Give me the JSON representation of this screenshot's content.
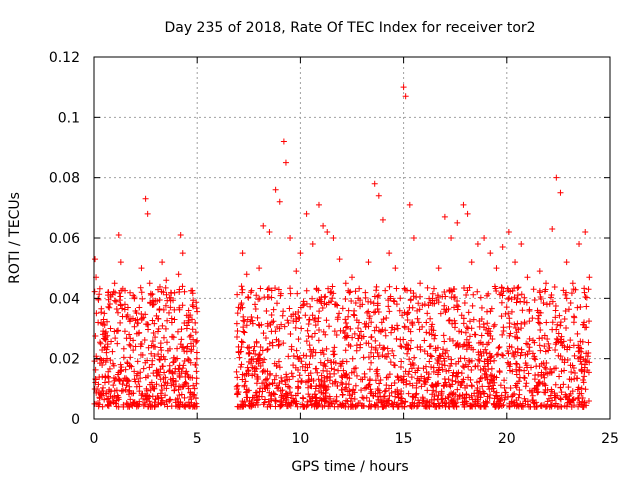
{
  "chart_data": {
    "type": "scatter",
    "title": "Day 235 of 2018, Rate Of TEC Index for receiver tor2",
    "xlabel": "GPS time / hours",
    "ylabel": "ROTI / TECUs",
    "xlim": [
      0,
      25
    ],
    "ylim": [
      0,
      0.12
    ],
    "x_ticks": [
      "0",
      "5",
      "10",
      "15",
      "20",
      "25"
    ],
    "y_ticks": [
      "0",
      "0.02",
      "0.04",
      "0.06",
      "0.08",
      "0.1",
      "0.12"
    ],
    "grid": true,
    "marker": "+",
    "color": "#ff0000",
    "data_gap_hours": [
      5.0,
      6.9
    ],
    "series": [
      {
        "x": [
          0.05,
          0.1,
          0.2,
          0.3,
          0.4,
          0.5,
          0.6,
          0.8,
          1.0,
          1.2,
          1.3,
          1.5,
          1.7,
          1.9,
          2.1,
          2.3,
          2.5,
          2.6,
          2.7,
          2.9,
          3.1,
          3.3,
          3.5,
          3.7,
          3.9,
          4.1,
          4.2,
          4.3,
          4.5,
          4.7,
          4.9,
          7.0,
          7.2,
          7.4,
          7.6,
          7.8,
          8.0,
          8.2,
          8.5,
          8.8,
          9.0,
          9.2,
          9.3,
          9.5,
          9.8,
          10.0,
          10.3,
          10.6,
          10.9,
          11.1,
          11.3,
          11.6,
          11.9,
          12.2,
          12.5,
          12.8,
          13.0,
          13.3,
          13.6,
          13.8,
          14.0,
          14.3,
          14.6,
          14.9,
          15.0,
          15.1,
          15.3,
          15.5,
          15.8,
          16.1,
          16.4,
          16.7,
          17.0,
          17.3,
          17.6,
          17.9,
          18.1,
          18.3,
          18.6,
          18.9,
          19.2,
          19.5,
          19.8,
          20.1,
          20.4,
          20.7,
          21.0,
          21.3,
          21.6,
          21.9,
          22.2,
          22.4,
          22.6,
          22.9,
          23.2,
          23.5,
          23.8,
          24.0
        ],
        "y": [
          0.053,
          0.047,
          0.032,
          0.02,
          0.014,
          0.035,
          0.022,
          0.03,
          0.045,
          0.061,
          0.052,
          0.038,
          0.028,
          0.041,
          0.033,
          0.05,
          0.073,
          0.068,
          0.045,
          0.038,
          0.029,
          0.052,
          0.046,
          0.037,
          0.033,
          0.048,
          0.061,
          0.055,
          0.03,
          0.025,
          0.018,
          0.037,
          0.055,
          0.048,
          0.042,
          0.038,
          0.05,
          0.064,
          0.062,
          0.076,
          0.072,
          0.092,
          0.085,
          0.06,
          0.049,
          0.055,
          0.068,
          0.058,
          0.071,
          0.064,
          0.062,
          0.06,
          0.053,
          0.045,
          0.047,
          0.04,
          0.038,
          0.052,
          0.078,
          0.074,
          0.066,
          0.055,
          0.05,
          0.024,
          0.11,
          0.107,
          0.071,
          0.06,
          0.045,
          0.032,
          0.04,
          0.05,
          0.067,
          0.06,
          0.065,
          0.071,
          0.068,
          0.052,
          0.058,
          0.06,
          0.055,
          0.05,
          0.057,
          0.062,
          0.052,
          0.058,
          0.047,
          0.043,
          0.049,
          0.045,
          0.063,
          0.08,
          0.075,
          0.052,
          0.045,
          0.058,
          0.062,
          0.047
        ]
      }
    ]
  }
}
